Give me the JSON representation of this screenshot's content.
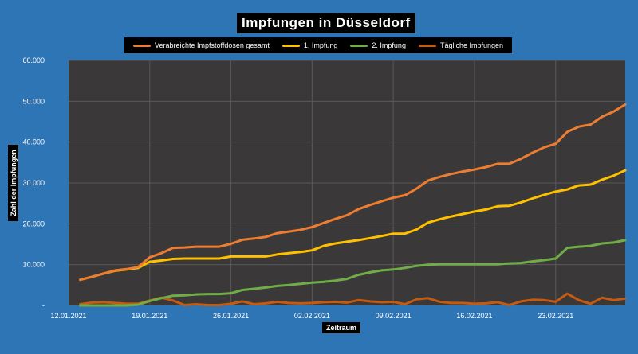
{
  "chart_data": {
    "type": "line",
    "title": "Impfungen in Düsseldorf",
    "xlabel": "Zeitraum",
    "ylabel": "Zahl der Impfungen",
    "ylim": [
      0,
      60000
    ],
    "yticks": [
      "-",
      "10.000",
      "20.000",
      "30.000",
      "40.000",
      "50.000",
      "60.000"
    ],
    "xticks": [
      "12.01.2021",
      "19.01.2021",
      "26.01.2021",
      "02.02.2021",
      "09.02.2021",
      "16.02.2021",
      "23.02.2021"
    ],
    "x_range": [
      "2021-01-12",
      "2021-03-01"
    ],
    "x_start": "2021-01-13",
    "grid": true,
    "legend_position": "top",
    "series": [
      {
        "name": "Verabreichte Impfstoffdosen gesamt",
        "color": "#ed7d31",
        "values": [
          6300,
          7000,
          7800,
          8600,
          8900,
          9400,
          11800,
          12800,
          14100,
          14200,
          14400,
          14400,
          14400,
          15100,
          16100,
          16400,
          16800,
          17700,
          18100,
          18500,
          19200,
          20200,
          21200,
          22100,
          23600,
          24600,
          25500,
          26400,
          27000,
          28600,
          30600,
          31500,
          32200,
          32800,
          33300,
          33900,
          34700,
          34700,
          35900,
          37400,
          38700,
          39600,
          42500,
          43800,
          44300,
          46200,
          47500,
          49200
        ]
      },
      {
        "name": "1. Impfung",
        "color": "#ffc000",
        "values": [
          6300,
          7000,
          7800,
          8500,
          8800,
          9200,
          10700,
          11000,
          11400,
          11500,
          11500,
          11500,
          11500,
          12000,
          12000,
          12000,
          12000,
          12500,
          12800,
          13100,
          13500,
          14600,
          15200,
          15600,
          16000,
          16500,
          17000,
          17600,
          17600,
          18600,
          20300,
          21100,
          21800,
          22400,
          23000,
          23500,
          24300,
          24400,
          25200,
          26200,
          27100,
          27900,
          28400,
          29400,
          29600,
          30800,
          31800,
          33100
        ]
      },
      {
        "name": "2. Impfung",
        "color": "#70ad47",
        "values": [
          0,
          0,
          0,
          0,
          0,
          200,
          1100,
          1800,
          2400,
          2500,
          2700,
          2800,
          2800,
          3000,
          3800,
          4100,
          4400,
          4800,
          5000,
          5300,
          5600,
          5800,
          6100,
          6500,
          7500,
          8100,
          8600,
          8800,
          9200,
          9700,
          10000,
          10100,
          10100,
          10100,
          10100,
          10100,
          10100,
          10300,
          10400,
          10800,
          11100,
          11500,
          14100,
          14400,
          14600,
          15200,
          15400,
          16000
        ]
      },
      {
        "name": "Tägliche Impfungen",
        "color": "#c55a11",
        "values": [
          300,
          700,
          800,
          600,
          400,
          400,
          1200,
          1900,
          1200,
          100,
          300,
          100,
          100,
          400,
          1000,
          300,
          500,
          900,
          600,
          500,
          600,
          800,
          900,
          700,
          1300,
          1000,
          800,
          900,
          300,
          1500,
          1800,
          900,
          600,
          600,
          400,
          500,
          800,
          100,
          1000,
          1400,
          1300,
          900,
          2900,
          1300,
          400,
          1900,
          1300,
          1700
        ]
      }
    ]
  }
}
